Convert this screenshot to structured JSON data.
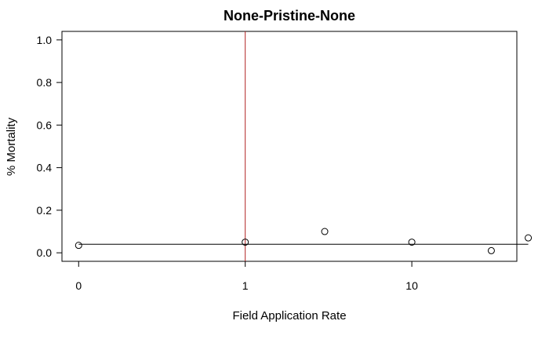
{
  "chart_data": {
    "type": "scatter",
    "title": "None-Pristine-None",
    "xlabel": "Field Application Rate",
    "ylabel": "% Mortality",
    "x_scale": "log10",
    "x_ticks": [
      {
        "value": 0.1,
        "label": "0"
      },
      {
        "value": 1,
        "label": "1"
      },
      {
        "value": 10,
        "label": "10"
      }
    ],
    "y_ticks": [
      {
        "value": 0.0,
        "label": "0.0"
      },
      {
        "value": 0.2,
        "label": "0.2"
      },
      {
        "value": 0.4,
        "label": "0.4"
      },
      {
        "value": 0.6,
        "label": "0.6"
      },
      {
        "value": 0.8,
        "label": "0.8"
      },
      {
        "value": 1.0,
        "label": "1.0"
      }
    ],
    "xlim": [
      0.0794,
      42.7
    ],
    "ylim": [
      -0.04,
      1.04
    ],
    "points": [
      {
        "x": 0.1,
        "y": 0.035
      },
      {
        "x": 1,
        "y": 0.05
      },
      {
        "x": 3,
        "y": 0.1
      },
      {
        "x": 10,
        "y": 0.05
      },
      {
        "x": 30,
        "y": 0.01
      },
      {
        "x": 50,
        "y": 0.07
      }
    ],
    "fit_line": {
      "x": [
        0.1,
        50
      ],
      "y": [
        0.04,
        0.04
      ],
      "color": "#000000"
    },
    "reference_line": {
      "x": 1,
      "color": "#b22222"
    },
    "grid": false,
    "legend": "none"
  }
}
